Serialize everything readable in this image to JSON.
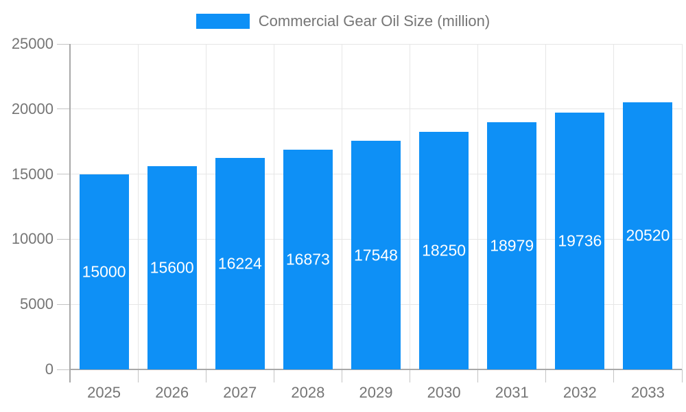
{
  "legend": {
    "items": [
      {
        "label": "Commercial Gear Oil Size (million)",
        "color": "#0E90F6"
      }
    ]
  },
  "chart_data": {
    "type": "bar",
    "title": "Commercial Gear Oil Size (million)",
    "categories": [
      "2025",
      "2026",
      "2027",
      "2028",
      "2029",
      "2030",
      "2031",
      "2032",
      "2033"
    ],
    "values": [
      15000,
      15600,
      16224,
      16873,
      17548,
      18250,
      18979,
      19736,
      20520
    ],
    "value_labels": [
      "15000",
      "15600",
      "16224",
      "16873",
      "17548",
      "18250",
      "18979",
      "19736",
      "20520"
    ],
    "xlabel": "",
    "ylabel": "",
    "ylim": [
      0,
      25000
    ],
    "yticks": [
      0,
      5000,
      10000,
      15000,
      20000,
      25000
    ],
    "ytick_labels": [
      "0",
      "5000",
      "10000",
      "15000",
      "20000",
      "25000"
    ],
    "grid": true,
    "legend_position": "top",
    "bar_color": "#0E90F6",
    "value_label_color": "#FFFFFF"
  },
  "colors": {
    "bar": "#0E90F6",
    "grid": "#E6E6E6",
    "axis": "#A8A8A8",
    "tick": "#C3C3C3",
    "tick_label": "#757575",
    "value_label": "#FFFFFF",
    "background": "#FFFFFF"
  }
}
